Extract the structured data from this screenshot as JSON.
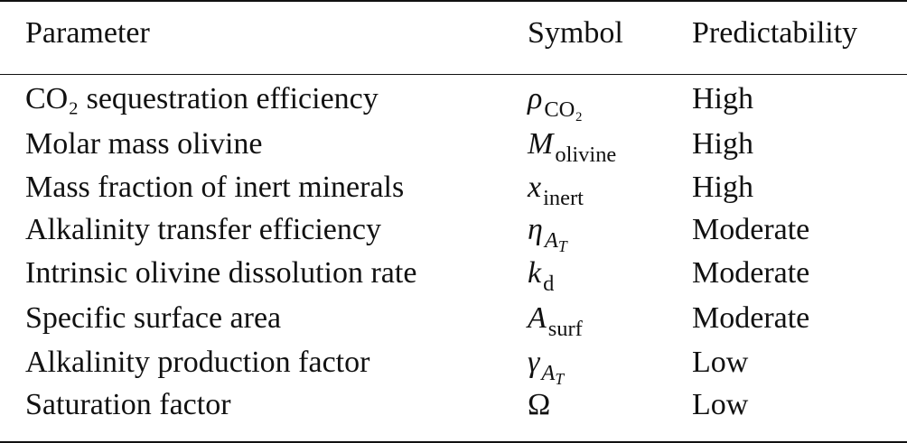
{
  "headers": {
    "parameter": "Parameter",
    "symbol": "Symbol",
    "predictability": "Predictability"
  },
  "rows": [
    {
      "parameter": "CO₂ sequestration efficiency",
      "symbol_base": "ρ",
      "symbol_sub": "CO₂",
      "predictability": "High"
    },
    {
      "parameter": "Molar mass olivine",
      "symbol_base": "M",
      "symbol_sub": "olivine",
      "predictability": "High"
    },
    {
      "parameter": "Mass fraction of inert minerals",
      "symbol_base": "x",
      "symbol_sub": "inert",
      "predictability": "High"
    },
    {
      "parameter": "Alkalinity transfer efficiency",
      "symbol_base": "η",
      "symbol_sub": "A",
      "symbol_subsub": "T",
      "predictability": "Moderate"
    },
    {
      "parameter": "Intrinsic olivine dissolution rate",
      "symbol_base": "k",
      "symbol_sub": "d",
      "predictability": "Moderate"
    },
    {
      "parameter": "Specific surface area",
      "symbol_base": "A",
      "symbol_sub": "surf",
      "predictability": "Moderate"
    },
    {
      "parameter": "Alkalinity production factor",
      "symbol_base": "γ",
      "symbol_sub": "A",
      "symbol_subsub": "T",
      "predictability": "Low"
    },
    {
      "parameter": "Saturation factor",
      "symbol_base": "Ω",
      "predictability": "Low"
    }
  ]
}
